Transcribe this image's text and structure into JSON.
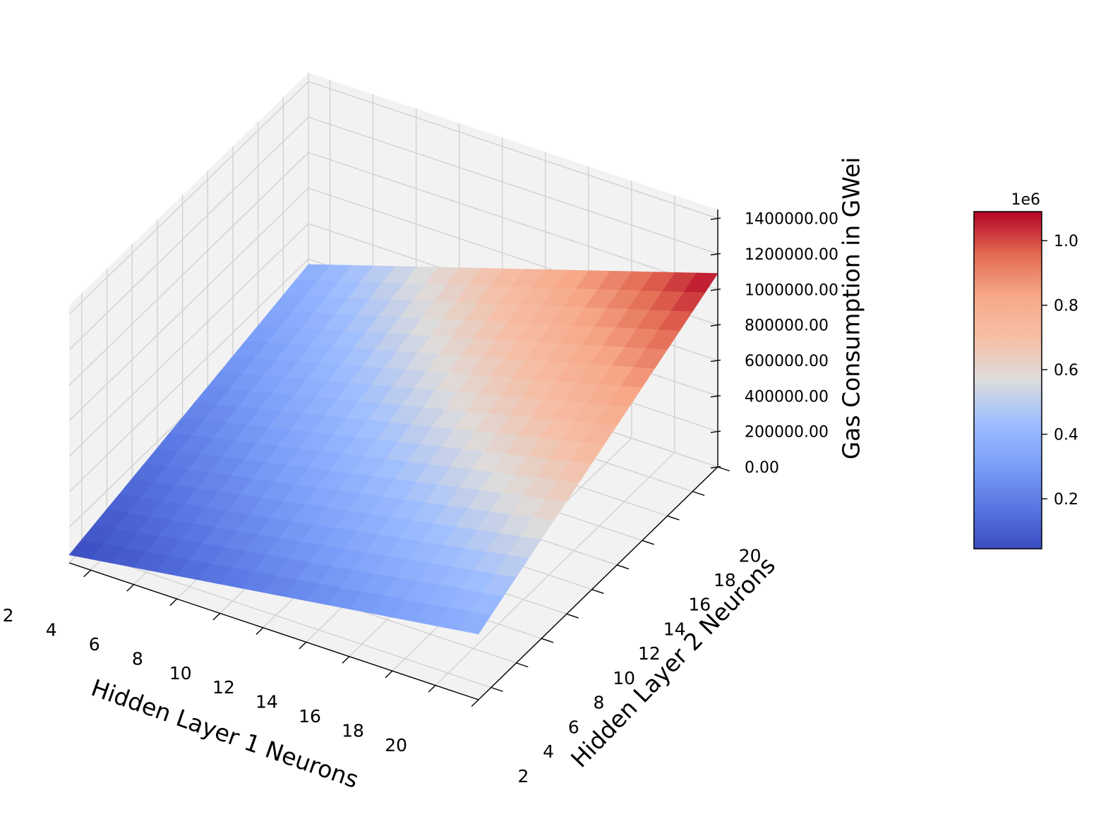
{
  "chart_data": {
    "type": "surface3d",
    "xlabel": "Hidden Layer 1 Neurons",
    "ylabel": "Hidden Layer 2 Neurons",
    "zlabel": "Gas Consumption in GWei",
    "x_ticks": [
      "2",
      "4",
      "6",
      "8",
      "10",
      "12",
      "14",
      "16",
      "18",
      "20"
    ],
    "y_ticks": [
      "2",
      "4",
      "6",
      "8",
      "10",
      "12",
      "14",
      "16",
      "18",
      "20"
    ],
    "z_ticks": [
      "0.00",
      "200000.00",
      "400000.00",
      "600000.00",
      "800000.00",
      "1000000.00",
      "1200000.00",
      "1400000.00"
    ],
    "xlim": [
      1,
      20
    ],
    "ylim": [
      1,
      20
    ],
    "zlim": [
      0,
      1450000
    ],
    "x": [
      1,
      2,
      3,
      4,
      5,
      6,
      7,
      8,
      9,
      10,
      11,
      12,
      13,
      14,
      15,
      16,
      17,
      18,
      19,
      20
    ],
    "y": [
      1,
      2,
      3,
      4,
      5,
      6,
      7,
      8,
      9,
      10,
      11,
      12,
      13,
      14,
      15,
      16,
      17,
      18,
      19,
      20
    ],
    "surface_corners": {
      "x1_y1": 45000,
      "x20_y1": 370000,
      "x1_y20": 370000,
      "x20_y20": 1090000
    },
    "colormap": "coolwarm",
    "colorbar": {
      "ticks": [
        "0.2",
        "0.4",
        "0.6",
        "0.8",
        "1.0"
      ],
      "tick_values": [
        0.2,
        0.4,
        0.6,
        0.8,
        1.0
      ],
      "range": [
        0.045,
        1.09
      ],
      "offset_label": "1e6"
    },
    "pane_color": "#f2f2f2",
    "grid": true
  }
}
